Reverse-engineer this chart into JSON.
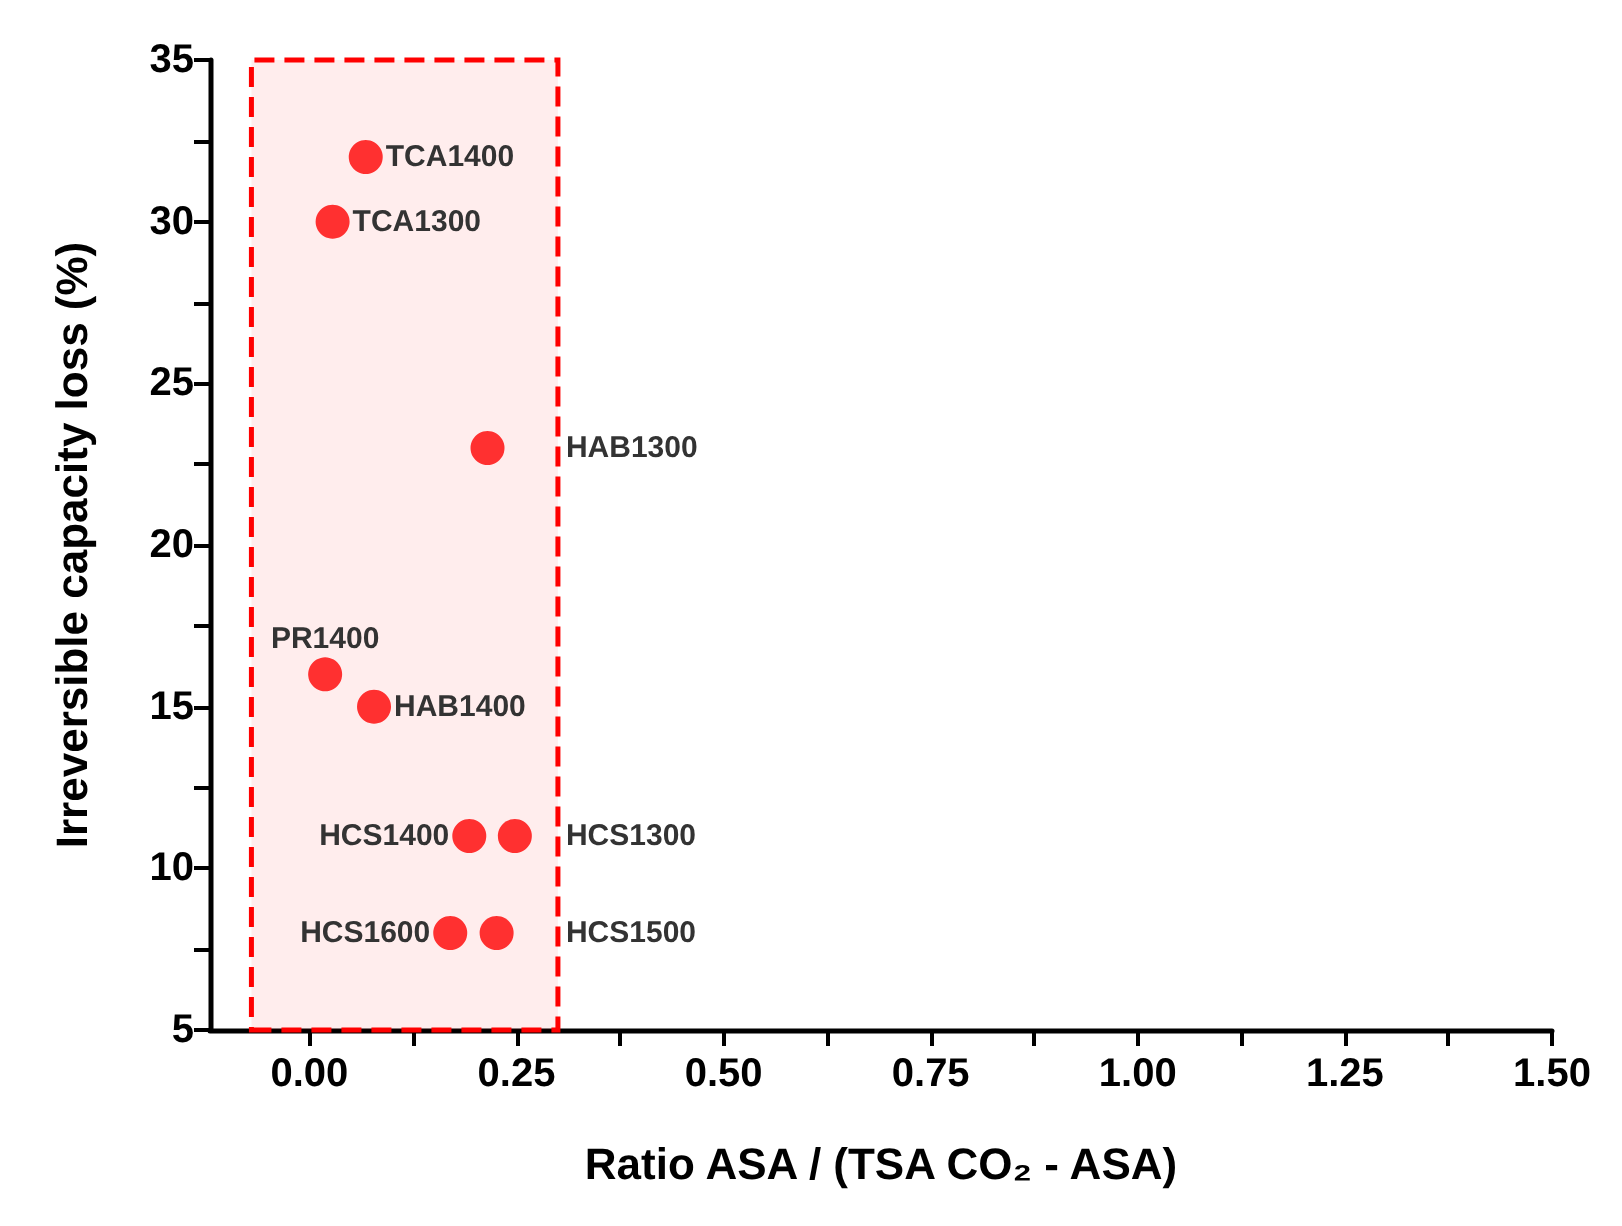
{
  "chart_data": {
    "type": "scatter",
    "xlabel": "Ratio ASA / (TSA CO₂ - ASA)",
    "ylabel": "Irreversible capacity loss (%)",
    "x": [
      0.068,
      0.028,
      0.215,
      0.019,
      0.078,
      0.193,
      0.248,
      0.17,
      0.226
    ],
    "series": [
      {
        "color": "#ff0000",
        "values": [
          32,
          30,
          23,
          16,
          15,
          11,
          11,
          8,
          8
        ]
      }
    ],
    "marker": "circle",
    "grid": false,
    "xlim": [
      -0.12,
      1.5
    ],
    "xticks": [
      {
        "value": 0,
        "label": "0.00"
      },
      {
        "value": 0.125,
        "label": null
      },
      {
        "value": 0.25,
        "label": "0.25"
      },
      {
        "value": 0.375,
        "label": null
      },
      {
        "value": 0.5,
        "label": "0.50"
      },
      {
        "value": 0.625,
        "label": null
      },
      {
        "value": 0.75,
        "label": "0.75"
      },
      {
        "value": 0.875,
        "label": null
      },
      {
        "value": 1,
        "label": "1.00"
      },
      {
        "value": 1.125,
        "label": null
      },
      {
        "value": 1.25,
        "label": "1.25"
      },
      {
        "value": 1.375,
        "label": null
      },
      {
        "value": 1.5,
        "label": "1.50"
      }
    ],
    "ylim": [
      5,
      35
    ],
    "yticks": [
      5,
      {
        "value": 7.5,
        "label": null
      },
      10,
      {
        "value": 12.5,
        "label": null
      },
      15,
      {
        "value": 17.5,
        "label": null
      },
      20,
      {
        "value": 22.5,
        "label": null
      },
      25,
      {
        "value": 27.5,
        "label": null
      },
      30,
      {
        "value": 32.5,
        "label": null
      },
      35
    ],
    "bands": [
      {
        "axis": "x",
        "from": -0.07,
        "to": 0.3,
        "color": "#ff0000"
      }
    ],
    "annotations": [
      {
        "text": "TCA1400",
        "x": 0.068,
        "y": 32
      },
      {
        "text": "TCA1300",
        "x": 0.028,
        "y": 30
      },
      {
        "text": "HAB1300",
        "x": 0.215,
        "y": 23
      },
      {
        "text": "PR1400",
        "x": 0.019,
        "y": 16
      },
      {
        "text": "HAB1400",
        "x": 0.078,
        "y": 15
      },
      {
        "text": "HCS1400",
        "x": 0.193,
        "y": 11
      },
      {
        "text": "HCS1300",
        "x": 0.248,
        "y": 11
      },
      {
        "text": "HCS1600",
        "x": 0.17,
        "y": 8
      },
      {
        "text": "HCS1500",
        "x": 0.226,
        "y": 8
      }
    ]
  }
}
